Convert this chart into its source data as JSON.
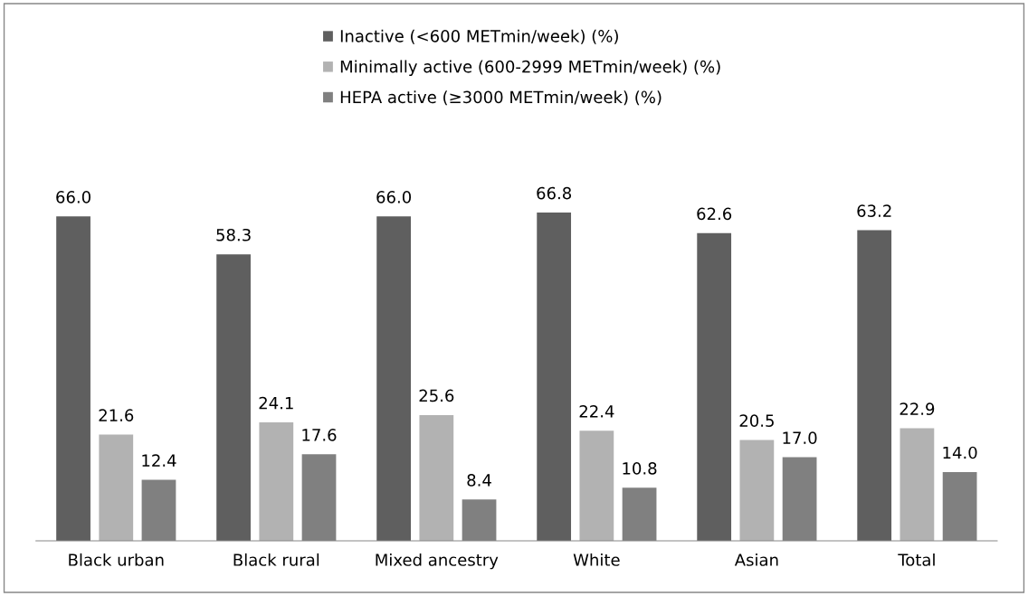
{
  "chart_data": {
    "type": "bar",
    "categories": [
      "Black urban",
      "Black rural",
      "Mixed ancestry",
      "White",
      "Asian",
      "Total"
    ],
    "series": [
      {
        "name": "Inactive (<600 METmin/week) (%)",
        "color": "#5f5f5f",
        "values": [
          66.0,
          58.3,
          66.0,
          66.8,
          62.6,
          63.2
        ],
        "value_labels": [
          "66.0",
          "58.3",
          "66.0",
          "66.8",
          "62.6",
          "63.2"
        ]
      },
      {
        "name": "Minimally active (600-2999 METmin/week) (%)",
        "color": "#b2b2b2",
        "values": [
          21.6,
          24.1,
          25.6,
          22.4,
          20.5,
          22.9
        ],
        "value_labels": [
          "21.6",
          "24.1",
          "25.6",
          "22.4",
          "20.5",
          "22.9"
        ]
      },
      {
        "name": "HEPA active (≥3000 METmin/week) (%)",
        "color": "#808080",
        "values": [
          12.4,
          17.6,
          8.4,
          10.8,
          17.0,
          14.0
        ],
        "value_labels": [
          "12.4",
          "17.6",
          "8.4",
          "10.8",
          "17.0",
          "14.0"
        ]
      }
    ],
    "legend": "top"
  }
}
